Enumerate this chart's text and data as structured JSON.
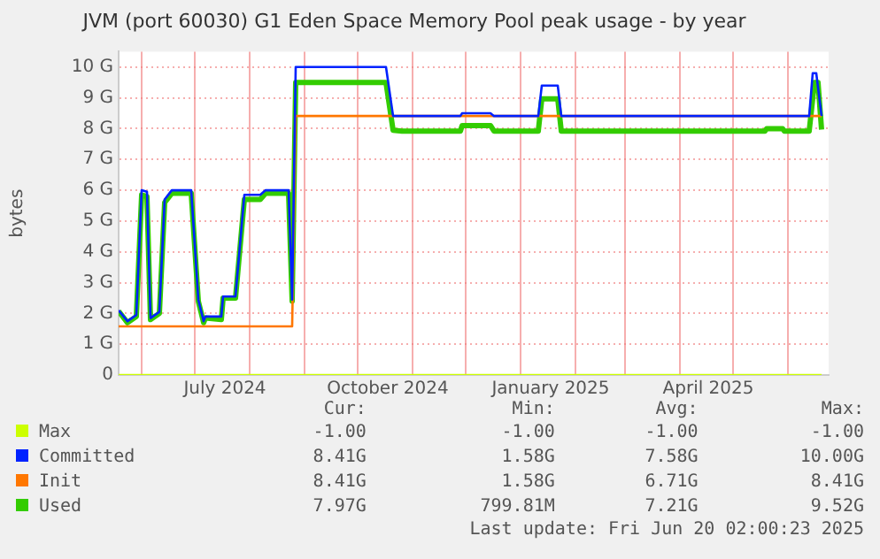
{
  "chart_data": {
    "type": "line",
    "title": "JVM (port 60030) G1 Eden Space Memory Pool peak usage - by year",
    "ylabel": "bytes",
    "xlim": [
      "2024-05-19",
      "2025-06-24"
    ],
    "xticks": [
      {
        "value": "2024-06-01",
        "label": null
      },
      {
        "value": "2024-07-01",
        "label": null
      },
      {
        "value": "2024-07-18",
        "label": "July 2024"
      },
      {
        "value": "2024-08-01",
        "label": null
      },
      {
        "value": "2024-09-01",
        "label": null
      },
      {
        "value": "2024-10-01",
        "label": null
      },
      {
        "value": "2024-10-18",
        "label": "October 2024"
      },
      {
        "value": "2024-11-01",
        "label": null
      },
      {
        "value": "2024-12-01",
        "label": null
      },
      {
        "value": "2025-01-01",
        "label": null
      },
      {
        "value": "2025-01-18",
        "label": "January 2025"
      },
      {
        "value": "2025-02-01",
        "label": null
      },
      {
        "value": "2025-03-01",
        "label": null
      },
      {
        "value": "2025-04-01",
        "label": null
      },
      {
        "value": "2025-04-17",
        "label": "April 2025"
      },
      {
        "value": "2025-05-01",
        "label": null
      },
      {
        "value": "2025-06-01",
        "label": null
      }
    ],
    "ylim": [
      0,
      10.5
    ],
    "yticks": [
      0,
      {
        "value": 1,
        "label": "1 G"
      },
      {
        "value": 2,
        "label": "2 G"
      },
      {
        "value": 3,
        "label": "3 G"
      },
      {
        "value": 4,
        "label": "4 G"
      },
      {
        "value": 5,
        "label": "5 G"
      },
      {
        "value": 6,
        "label": "6 G"
      },
      {
        "value": 7,
        "label": "7 G"
      },
      {
        "value": 8,
        "label": "8 G"
      },
      {
        "value": 9,
        "label": "9 G"
      },
      {
        "value": 10,
        "label": "10 G"
      }
    ],
    "grid": true,
    "legend": "bottom",
    "marker": "none",
    "line_style": "solid",
    "series": [
      {
        "name": "Max",
        "color": "#ccff00",
        "x": [
          "2024-05-19",
          "2025-06-20"
        ],
        "values": [
          0,
          0
        ]
      },
      {
        "name": "Committed",
        "color": "#0022ff",
        "x": [
          "2024-05-19",
          "2024-05-24",
          "2024-05-29",
          "2024-06-01",
          "2024-06-04",
          "2024-06-06",
          "2024-06-11",
          "2024-06-14",
          "2024-06-18",
          "2024-06-29",
          "2024-07-03",
          "2024-07-06",
          "2024-07-07",
          "2024-07-16",
          "2024-07-17",
          "2024-07-24",
          "2024-07-29",
          "2024-08-07",
          "2024-08-10",
          "2024-08-23",
          "2024-08-25",
          "2024-08-27",
          "2024-10-17",
          "2024-10-21",
          "2024-11-28",
          "2024-11-29",
          "2024-12-15",
          "2024-12-17",
          "2025-01-11",
          "2025-01-13",
          "2025-01-22",
          "2025-01-24",
          "2025-06-13",
          "2025-06-15",
          "2025-06-17",
          "2025-06-20"
        ],
        "values": [
          2.1,
          1.75,
          1.95,
          6.0,
          5.95,
          1.85,
          2.05,
          5.7,
          6.0,
          6.0,
          2.45,
          1.75,
          1.9,
          1.9,
          2.55,
          2.55,
          5.85,
          5.85,
          6.0,
          6.0,
          2.45,
          10.0,
          10.0,
          8.41,
          8.41,
          8.5,
          8.5,
          8.41,
          8.41,
          9.4,
          9.4,
          8.41,
          8.41,
          9.8,
          9.8,
          8.41
        ]
      },
      {
        "name": "Init",
        "color": "#ff7700",
        "x": [
          "2024-05-19",
          "2024-08-25",
          "2024-08-27",
          "2025-06-20"
        ],
        "values": [
          1.58,
          1.58,
          8.41,
          8.41
        ]
      },
      {
        "name": "Used",
        "color": "#33cc00",
        "x": [
          "2024-05-19",
          "2024-05-24",
          "2024-05-29",
          "2024-06-01",
          "2024-06-04",
          "2024-06-06",
          "2024-06-11",
          "2024-06-14",
          "2024-06-18",
          "2024-06-29",
          "2024-07-03",
          "2024-07-06",
          "2024-07-07",
          "2024-07-16",
          "2024-07-17",
          "2024-07-24",
          "2024-07-29",
          "2024-08-07",
          "2024-08-10",
          "2024-08-23",
          "2024-08-25",
          "2024-08-27",
          "2024-10-17",
          "2024-10-21",
          "2024-10-26",
          "2024-11-28",
          "2024-11-29",
          "2024-12-15",
          "2024-12-17",
          "2025-01-11",
          "2025-01-13",
          "2025-01-22",
          "2025-01-24",
          "2025-05-19",
          "2025-05-20",
          "2025-05-29",
          "2025-05-30",
          "2025-06-13",
          "2025-06-16",
          "2025-06-18",
          "2025-06-20"
        ],
        "values": [
          2.07,
          1.7,
          1.9,
          5.85,
          5.8,
          1.8,
          2.0,
          5.6,
          5.9,
          5.9,
          2.4,
          1.7,
          1.85,
          1.8,
          2.5,
          2.5,
          5.7,
          5.7,
          5.9,
          5.9,
          2.4,
          9.5,
          9.5,
          7.95,
          7.92,
          7.92,
          8.1,
          8.1,
          7.92,
          7.92,
          8.97,
          8.97,
          7.92,
          7.92,
          8.0,
          8.0,
          7.92,
          7.92,
          9.5,
          9.5,
          7.97
        ]
      }
    ],
    "annotations": [
      "Cur:",
      "Min:",
      "Avg:",
      "Max:",
      "-1.00",
      "-1.00",
      "-1.00",
      "-1.00",
      "8.41G",
      "1.58G",
      "7.58G",
      "10.00G",
      "8.41G",
      "1.58G",
      "6.71G",
      "8.41G",
      "7.97G",
      "799.81M",
      "7.21G",
      "9.52G",
      "Last update: Fri Jun 20 02:00:23 2025"
    ]
  }
}
